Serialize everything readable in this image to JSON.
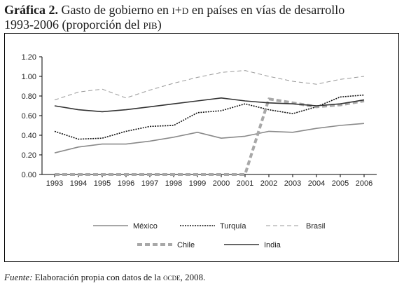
{
  "title": {
    "label": "Gráfica 2.",
    "part1": " Gasto de gobierno en ",
    "acronym": "I+D",
    "part2": " en países en vías de desarrollo",
    "line2a": "1993-2006 (proporción del ",
    "line2acronym": "PIB",
    "line2b": ")"
  },
  "source": {
    "label": "Fuente:",
    "text1": " Elaboración propia con datos de la ",
    "acronym": "OCDE",
    "text2": ", 2008."
  },
  "chart_data": {
    "type": "line",
    "title": "",
    "xlabel": "",
    "ylabel": "",
    "x": [
      "1993",
      "1994",
      "1995",
      "1996",
      "1997",
      "1998",
      "1999",
      "2000",
      "2001",
      "2002",
      "2003",
      "2004",
      "2005",
      "2006"
    ],
    "ylim": [
      0,
      1.2
    ],
    "yticks": [
      "0.00",
      "0.20",
      "0.40",
      "0.60",
      "0.80",
      "1.00",
      "1.20"
    ],
    "grid": false,
    "legend": "bottom",
    "series": [
      {
        "name": "México",
        "style": "solid",
        "color": "#8a8a8a",
        "values": [
          0.22,
          0.28,
          0.31,
          0.31,
          0.34,
          0.38,
          0.43,
          0.37,
          0.39,
          0.44,
          0.43,
          0.47,
          0.5,
          0.52
        ]
      },
      {
        "name": "Turquía",
        "style": "dotted",
        "color": "#111111",
        "values": [
          0.44,
          0.36,
          0.37,
          0.44,
          0.49,
          0.5,
          0.63,
          0.65,
          0.72,
          0.66,
          0.62,
          0.69,
          0.79,
          0.81
        ]
      },
      {
        "name": "Brasil",
        "style": "dashed",
        "color": "#999999",
        "values": [
          0.76,
          0.84,
          0.87,
          0.78,
          0.86,
          0.93,
          0.99,
          1.04,
          1.06,
          1.0,
          0.95,
          0.92,
          0.97,
          1.0
        ]
      },
      {
        "name": "Chile",
        "style": "thickdash",
        "color": "#a8a8a8",
        "values": [
          0.0,
          0.0,
          0.0,
          0.0,
          0.0,
          0.0,
          0.0,
          0.0,
          0.0,
          0.77,
          0.73,
          0.69,
          0.71,
          0.75
        ]
      },
      {
        "name": "India",
        "style": "solid",
        "color": "#333333",
        "values": [
          0.7,
          0.66,
          0.64,
          0.66,
          0.69,
          0.72,
          0.75,
          0.78,
          0.75,
          0.73,
          0.72,
          0.7,
          0.72,
          0.76
        ]
      }
    ]
  }
}
